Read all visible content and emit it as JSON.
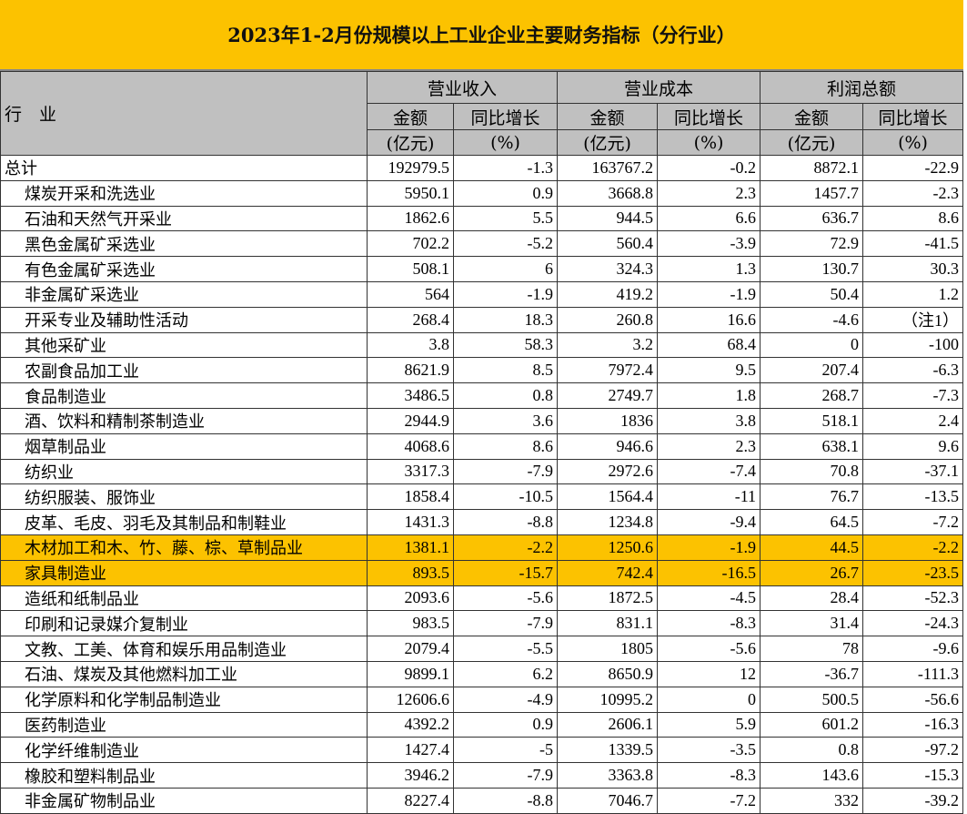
{
  "title": "2023年1-2月份规模以上工业企业主要财务指标（分行业）",
  "header": {
    "industry": "行　业",
    "groups": [
      "营业收入",
      "营业成本",
      "利润总额"
    ],
    "sub": [
      "金额",
      "同比增长"
    ],
    "units": [
      "(亿元)",
      "(%)"
    ]
  },
  "highlight_color": "#fcc200",
  "rows": [
    {
      "name": "总计",
      "indent": false,
      "v": [
        "192979.5",
        "-1.3",
        "163767.2",
        "-0.2",
        "8872.1",
        "-22.9"
      ]
    },
    {
      "name": "煤炭开采和洗选业",
      "v": [
        "5950.1",
        "0.9",
        "3668.8",
        "2.3",
        "1457.7",
        "-2.3"
      ]
    },
    {
      "name": "石油和天然气开采业",
      "v": [
        "1862.6",
        "5.5",
        "944.5",
        "6.6",
        "636.7",
        "8.6"
      ]
    },
    {
      "name": "黑色金属矿采选业",
      "v": [
        "702.2",
        "-5.2",
        "560.4",
        "-3.9",
        "72.9",
        "-41.5"
      ]
    },
    {
      "name": "有色金属矿采选业",
      "v": [
        "508.1",
        "6",
        "324.3",
        "1.3",
        "130.7",
        "30.3"
      ]
    },
    {
      "name": "非金属矿采选业",
      "v": [
        "564",
        "-1.9",
        "419.2",
        "-1.9",
        "50.4",
        "1.2"
      ]
    },
    {
      "name": "开采专业及辅助性活动",
      "v": [
        "268.4",
        "18.3",
        "260.8",
        "16.6",
        "-4.6",
        "（注1）"
      ]
    },
    {
      "name": "其他采矿业",
      "v": [
        "3.8",
        "58.3",
        "3.2",
        "68.4",
        "0",
        "-100"
      ]
    },
    {
      "name": "农副食品加工业",
      "v": [
        "8621.9",
        "8.5",
        "7972.4",
        "9.5",
        "207.4",
        "-6.3"
      ]
    },
    {
      "name": "食品制造业",
      "v": [
        "3486.5",
        "0.8",
        "2749.7",
        "1.8",
        "268.7",
        "-7.3"
      ]
    },
    {
      "name": "酒、饮料和精制茶制造业",
      "v": [
        "2944.9",
        "3.6",
        "1836",
        "3.8",
        "518.1",
        "2.4"
      ]
    },
    {
      "name": "烟草制品业",
      "v": [
        "4068.6",
        "8.6",
        "946.6",
        "2.3",
        "638.1",
        "9.6"
      ]
    },
    {
      "name": "纺织业",
      "v": [
        "3317.3",
        "-7.9",
        "2972.6",
        "-7.4",
        "70.8",
        "-37.1"
      ]
    },
    {
      "name": "纺织服装、服饰业",
      "v": [
        "1858.4",
        "-10.5",
        "1564.4",
        "-11",
        "76.7",
        "-13.5"
      ]
    },
    {
      "name": "皮革、毛皮、羽毛及其制品和制鞋业",
      "v": [
        "1431.3",
        "-8.8",
        "1234.8",
        "-9.4",
        "64.5",
        "-7.2"
      ]
    },
    {
      "name": "木材加工和木、竹、藤、棕、草制品业",
      "highlight": true,
      "v": [
        "1381.1",
        "-2.2",
        "1250.6",
        "-1.9",
        "44.5",
        "-2.2"
      ]
    },
    {
      "name": "家具制造业",
      "highlight": true,
      "v": [
        "893.5",
        "-15.7",
        "742.4",
        "-16.5",
        "26.7",
        "-23.5"
      ]
    },
    {
      "name": "造纸和纸制品业",
      "v": [
        "2093.6",
        "-5.6",
        "1872.5",
        "-4.5",
        "28.4",
        "-52.3"
      ]
    },
    {
      "name": "印刷和记录媒介复制业",
      "v": [
        "983.5",
        "-7.9",
        "831.1",
        "-8.3",
        "31.4",
        "-24.3"
      ]
    },
    {
      "name": "文教、工美、体育和娱乐用品制造业",
      "v": [
        "2079.4",
        "-5.5",
        "1805",
        "-5.6",
        "78",
        "-9.6"
      ]
    },
    {
      "name": "石油、煤炭及其他燃料加工业",
      "v": [
        "9899.1",
        "6.2",
        "8650.9",
        "12",
        "-36.7",
        "-111.3"
      ]
    },
    {
      "name": "化学原料和化学制品制造业",
      "v": [
        "12606.6",
        "-4.9",
        "10995.2",
        "0",
        "500.5",
        "-56.6"
      ]
    },
    {
      "name": "医药制造业",
      "v": [
        "4392.2",
        "0.9",
        "2606.1",
        "5.9",
        "601.2",
        "-16.3"
      ]
    },
    {
      "name": "化学纤维制造业",
      "v": [
        "1427.4",
        "-5",
        "1339.5",
        "-3.5",
        "0.8",
        "-97.2"
      ]
    },
    {
      "name": "橡胶和塑料制品业",
      "v": [
        "3946.2",
        "-7.9",
        "3363.8",
        "-8.3",
        "143.6",
        "-15.3"
      ]
    },
    {
      "name": "非金属矿物制品业",
      "v": [
        "8227.4",
        "-8.8",
        "7046.7",
        "-7.2",
        "332",
        "-39.2"
      ]
    }
  ]
}
